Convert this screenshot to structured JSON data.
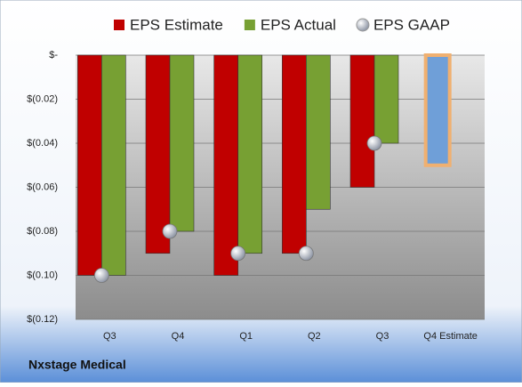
{
  "chart_data": {
    "type": "bar",
    "footer": "Nxstage Medical",
    "categories": [
      "Q3",
      "Q4",
      "Q1",
      "Q2",
      "Q3",
      "Q4 Estimate"
    ],
    "series": [
      {
        "name": "EPS Estimate",
        "color": "#c00000",
        "point_colors": [
          "#c00000",
          "#c00000",
          "#c00000",
          "#c00000",
          "#c00000",
          "#6f9fd8"
        ],
        "values": [
          -0.1,
          -0.09,
          -0.1,
          -0.09,
          -0.06,
          -0.05
        ]
      },
      {
        "name": "EPS Actual",
        "color": "#77a033",
        "values": [
          -0.1,
          -0.08,
          -0.09,
          -0.07,
          -0.04,
          null
        ]
      },
      {
        "name": "EPS GAAP",
        "color": "#b8c0cc",
        "marker": "circle",
        "values": [
          -0.1,
          -0.08,
          -0.09,
          -0.09,
          -0.04,
          null
        ]
      }
    ],
    "ylim": [
      -0.12,
      0
    ],
    "yticks": [
      {
        "value": 0,
        "label": "$-"
      },
      {
        "value": -0.02,
        "label": "$(0.02)"
      },
      {
        "value": -0.04,
        "label": "$(0.04)"
      },
      {
        "value": -0.06,
        "label": "$(0.06)"
      },
      {
        "value": -0.08,
        "label": "$(0.08)"
      },
      {
        "value": -0.1,
        "label": "$(0.10)"
      },
      {
        "value": -0.12,
        "label": "$(0.12)"
      }
    ],
    "grid": true
  }
}
